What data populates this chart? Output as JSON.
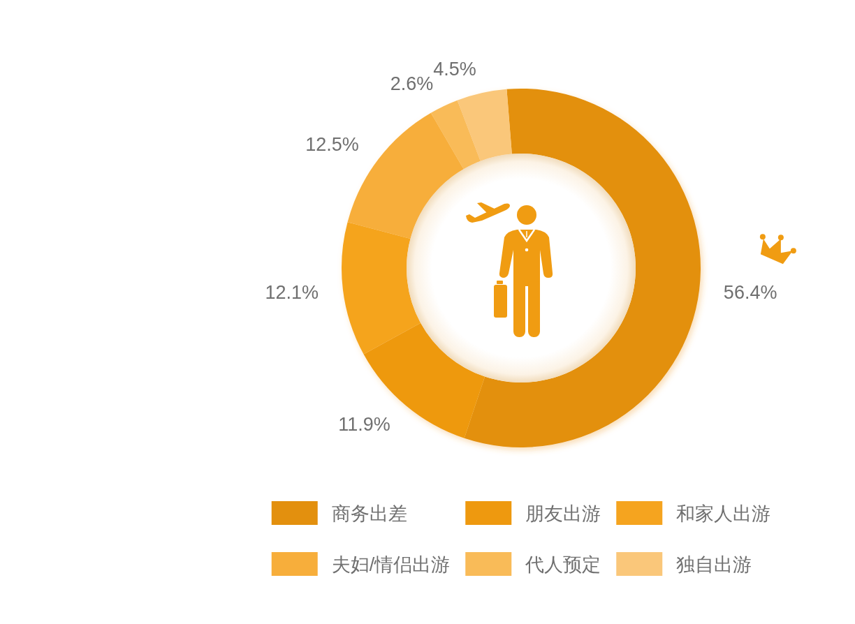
{
  "chart_data": {
    "type": "donut",
    "categories": [
      "商务出差",
      "朋友出游",
      "和家人出游",
      "夫妇/情侣出游",
      "代人预定",
      "独自出游"
    ],
    "values": [
      56.4,
      11.9,
      12.1,
      12.5,
      2.6,
      4.5
    ],
    "colors": [
      "#e3900e",
      "#ee990f",
      "#f5a41f",
      "#f7ae3b",
      "#f9bb58",
      "#fac77a"
    ],
    "value_labels": [
      "56.4%",
      "11.9%",
      "12.1%",
      "12.5%",
      "2.6%",
      "4.5%"
    ],
    "legend": "bottom"
  }
}
